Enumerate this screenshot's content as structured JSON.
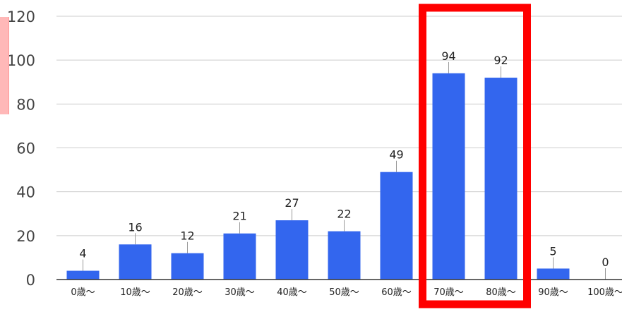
{
  "chart_data": {
    "type": "bar",
    "categories": [
      "0歳～",
      "10歳～",
      "20歳～",
      "30歳～",
      "40歳～",
      "50歳～",
      "60歳～",
      "70歳～",
      "80歳～",
      "90歳～",
      "100歳～"
    ],
    "values": [
      4,
      16,
      12,
      21,
      27,
      22,
      49,
      94,
      92,
      5,
      0
    ],
    "title": "",
    "xlabel": "",
    "ylabel": "",
    "ylim": [
      0,
      120
    ],
    "yticks": [
      0,
      20,
      40,
      60,
      80,
      100,
      120
    ],
    "grid": true,
    "bar_color": "#3366ee",
    "highlight": {
      "categories": [
        "70歳～",
        "80歳～"
      ],
      "color": "#ff0000"
    }
  }
}
